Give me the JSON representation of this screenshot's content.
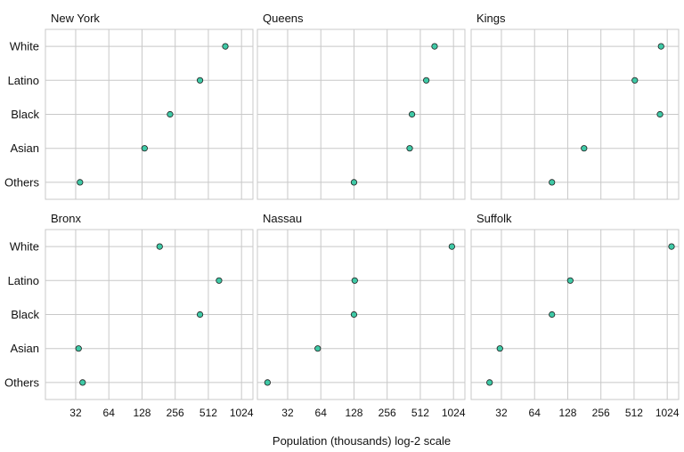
{
  "chart_data": {
    "type": "scatter",
    "xlabel": "Population (thousands) log-2 scale",
    "x_scale": "log2",
    "xlim": [
      17,
      1300
    ],
    "x_ticks": [
      32,
      64,
      128,
      256,
      512,
      1024
    ],
    "x_tick_labels": [
      "32",
      "64",
      "128",
      "256",
      "512",
      "1024"
    ],
    "categories": [
      "White",
      "Latino",
      "Black",
      "Asian",
      "Others"
    ],
    "grid": true,
    "point_fill": "#3fc9a6",
    "point_stroke": "#1f1f1f",
    "panel_border": "#c8c8c8",
    "grid_color": "#c8c8c8",
    "panels": [
      {
        "name": "New York",
        "values": {
          "White": 730,
          "Latino": 430,
          "Black": 230,
          "Asian": 135,
          "Others": 35
        }
      },
      {
        "name": "Queens",
        "values": {
          "White": 690,
          "Latino": 580,
          "Black": 430,
          "Asian": 410,
          "Others": 128
        }
      },
      {
        "name": "Kings",
        "values": {
          "White": 900,
          "Latino": 520,
          "Black": 880,
          "Asian": 180,
          "Others": 92
        }
      },
      {
        "name": "Bronx",
        "values": {
          "White": 185,
          "Latino": 640,
          "Black": 430,
          "Asian": 34,
          "Others": 37
        }
      },
      {
        "name": "Nassau",
        "values": {
          "White": 990,
          "Latino": 130,
          "Black": 128,
          "Asian": 60,
          "Others": 21
        }
      },
      {
        "name": "Suffolk",
        "values": {
          "White": 1120,
          "Latino": 135,
          "Black": 92,
          "Asian": 31,
          "Others": 25
        }
      }
    ]
  }
}
